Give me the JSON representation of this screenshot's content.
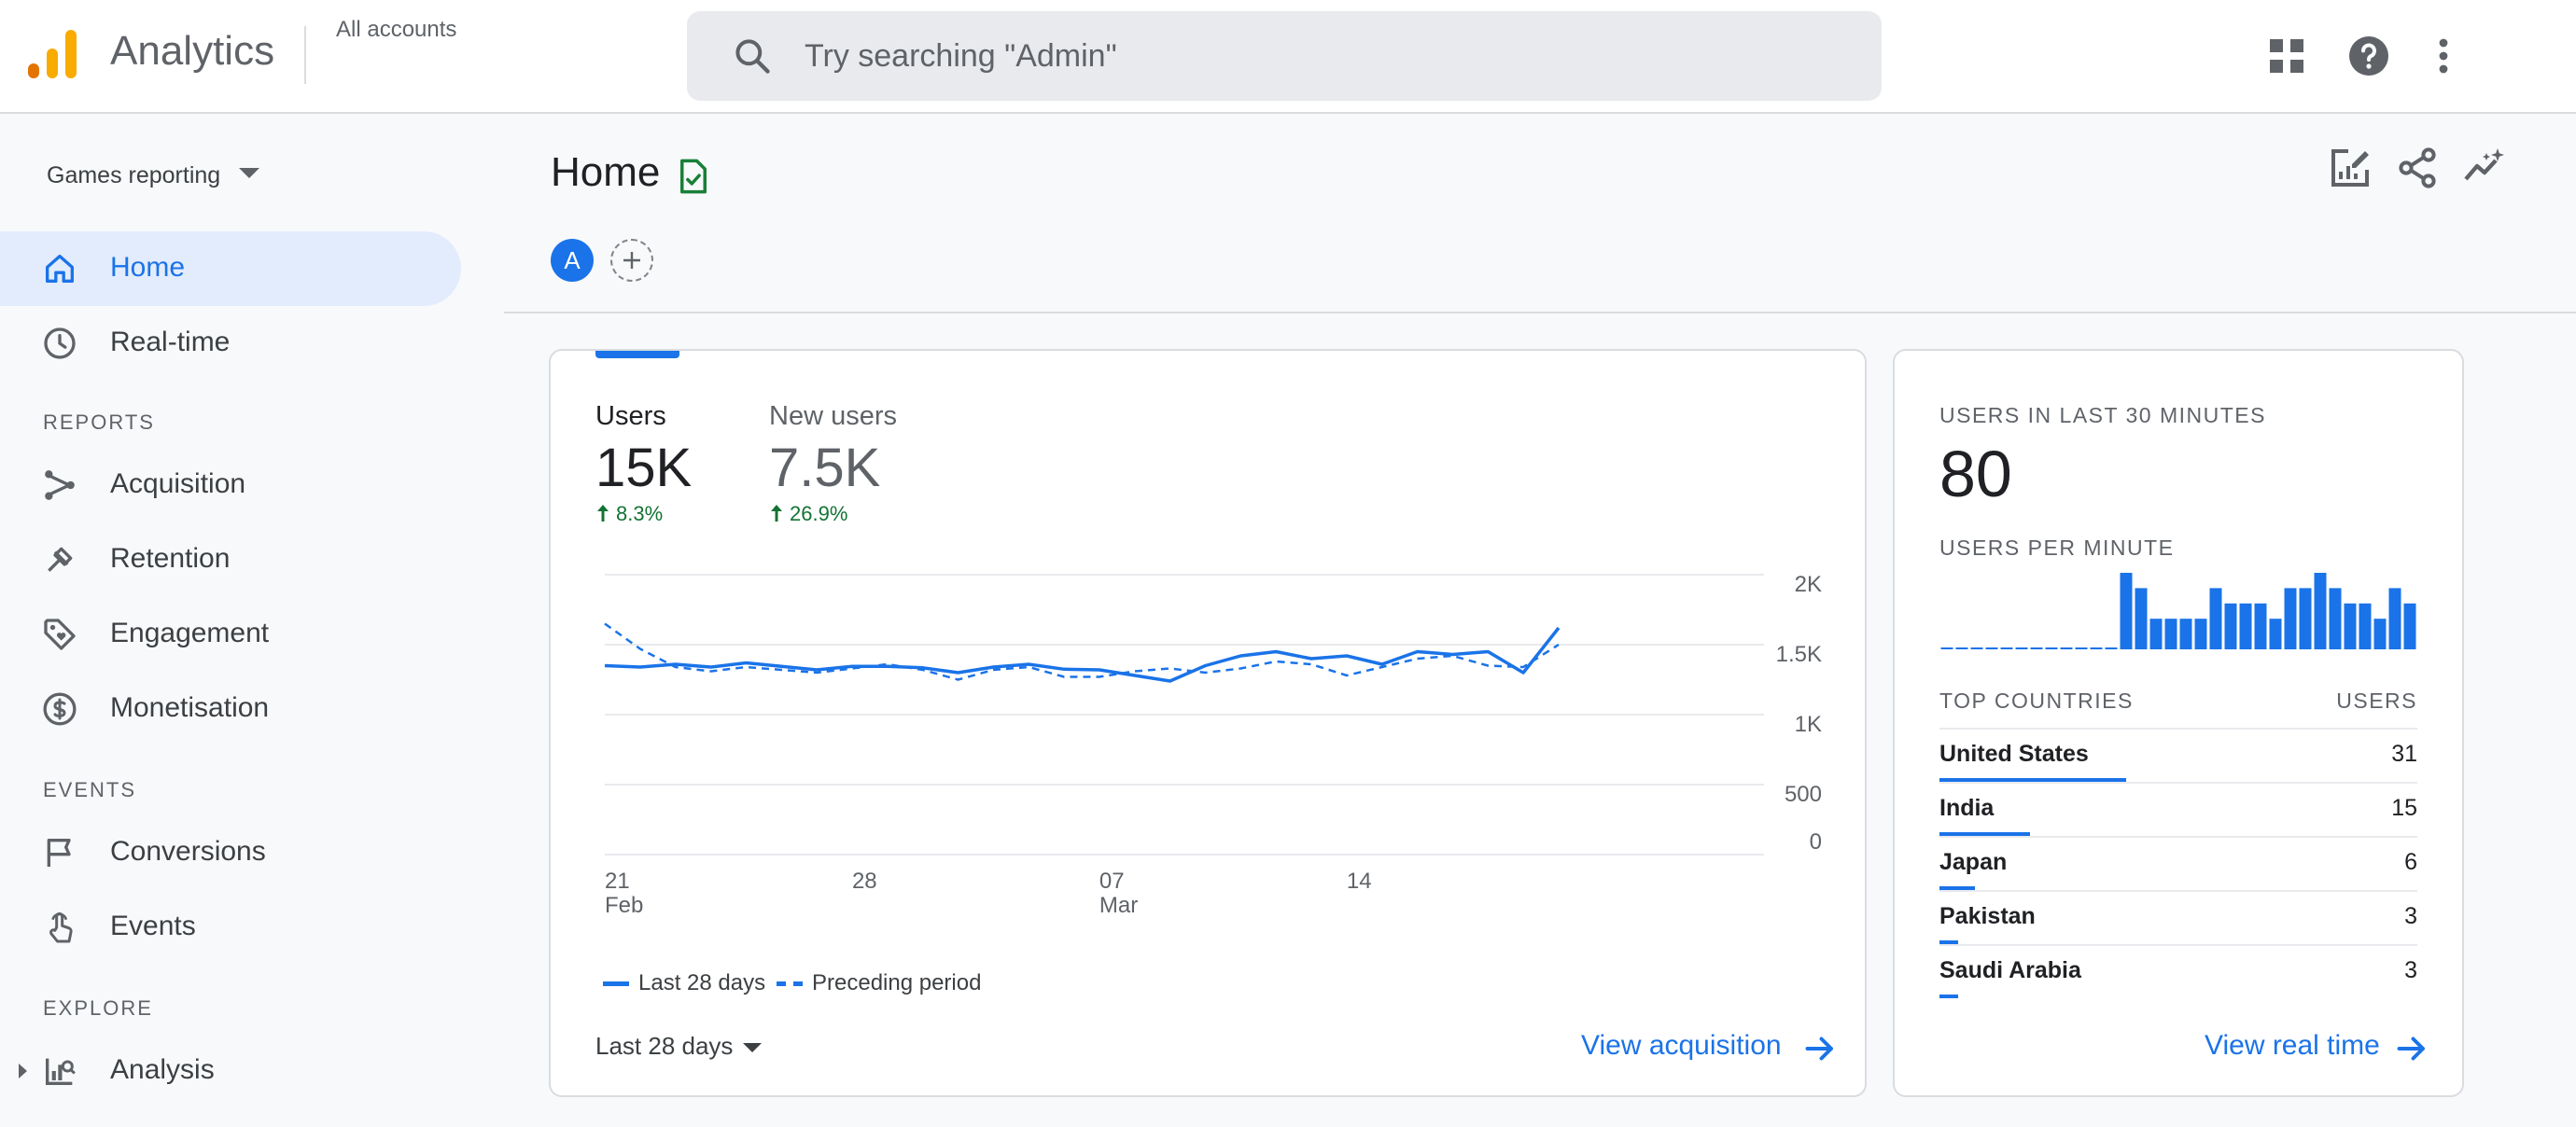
{
  "header": {
    "app_title": "Analytics",
    "account_label": "All accounts",
    "search_placeholder": "Try searching \"Admin\"",
    "logo_colors": [
      "#f9ab00",
      "#e37400"
    ],
    "icons": [
      "apps-grid-icon",
      "help-icon",
      "more-vert-icon"
    ]
  },
  "sidebar": {
    "property": "Games reporting",
    "top_items": [
      {
        "label": "Home",
        "icon": "home-icon",
        "active": true
      },
      {
        "label": "Real-time",
        "icon": "clock-icon",
        "active": false
      }
    ],
    "sections": [
      {
        "label": "REPORTS",
        "items": [
          {
            "label": "Acquisition",
            "icon": "acquisition-icon"
          },
          {
            "label": "Retention",
            "icon": "retention-icon"
          },
          {
            "label": "Engagement",
            "icon": "engagement-tag-icon"
          },
          {
            "label": "Monetisation",
            "icon": "dollar-icon"
          }
        ]
      },
      {
        "label": "EVENTS",
        "items": [
          {
            "label": "Conversions",
            "icon": "flag-icon"
          },
          {
            "label": "Events",
            "icon": "touch-icon"
          }
        ]
      },
      {
        "label": "EXPLORE",
        "items": [
          {
            "label": "Analysis",
            "icon": "analysis-icon"
          }
        ]
      }
    ]
  },
  "page": {
    "title": "Home",
    "comparison_chip": "A",
    "actions": [
      "edit-report-icon",
      "share-icon",
      "insights-icon"
    ]
  },
  "overview_card": {
    "metrics": [
      {
        "label": "Users",
        "value": "15K",
        "change": "8.3%"
      },
      {
        "label": "New users",
        "value": "7.5K",
        "change": "26.9%"
      }
    ],
    "legend": [
      "Last 28 days",
      "Preceding period"
    ],
    "date_range": "Last 28 days",
    "link": "View acquisition"
  },
  "chart_data": {
    "type": "line",
    "x_ticks": [
      {
        "index": 0,
        "line1": "21",
        "line2": "Feb"
      },
      {
        "index": 7,
        "line1": "28",
        "line2": ""
      },
      {
        "index": 14,
        "line1": "07",
        "line2": "Mar"
      },
      {
        "index": 21,
        "line1": "14",
        "line2": ""
      }
    ],
    "y_ticks": [
      "2K",
      "1.5K",
      "1K",
      "500",
      "0"
    ],
    "y_tick_values": [
      2000,
      1500,
      1000,
      500,
      0
    ],
    "ylim": [
      0,
      2000
    ],
    "grid": true,
    "series": [
      {
        "name": "Last 28 days",
        "style": "solid",
        "values": [
          1350,
          1340,
          1360,
          1340,
          1370,
          1345,
          1320,
          1345,
          1345,
          1335,
          1300,
          1340,
          1360,
          1325,
          1320,
          1280,
          1240,
          1350,
          1420,
          1450,
          1400,
          1420,
          1360,
          1450,
          1430,
          1450,
          1300,
          1620
        ]
      },
      {
        "name": "Preceding period",
        "style": "dashed",
        "values": [
          1650,
          1470,
          1340,
          1310,
          1340,
          1320,
          1300,
          1330,
          1360,
          1320,
          1250,
          1320,
          1340,
          1270,
          1270,
          1310,
          1330,
          1300,
          1330,
          1380,
          1360,
          1280,
          1340,
          1400,
          1420,
          1350,
          1340,
          1500
        ]
      }
    ]
  },
  "realtime_card": {
    "title": "USERS IN LAST 30 MINUTES",
    "value": "80",
    "per_minute_label": "USERS PER MINUTE",
    "per_minute": [
      0,
      0,
      0,
      0,
      0,
      0,
      0,
      0,
      0,
      0,
      0,
      0,
      5,
      4,
      2,
      2,
      2,
      2,
      4,
      3,
      3,
      3,
      2,
      4,
      4,
      5,
      4,
      3,
      3,
      2,
      4,
      3
    ],
    "countries_header": "TOP COUNTRIES",
    "users_header": "USERS",
    "countries": [
      {
        "name": "United States",
        "value": "31",
        "share": 0.39
      },
      {
        "name": "India",
        "value": "15",
        "share": 0.19
      },
      {
        "name": "Japan",
        "value": "6",
        "share": 0.075
      },
      {
        "name": "Pakistan",
        "value": "3",
        "share": 0.038
      },
      {
        "name": "Saudi Arabia",
        "value": "3",
        "share": 0.038
      }
    ],
    "link": "View real time"
  }
}
